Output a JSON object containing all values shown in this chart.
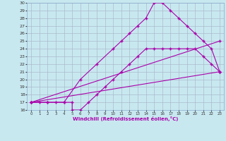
{
  "xlabel": "Windchill (Refroidissement éolien,°C)",
  "bg_color": "#c8e8f0",
  "line_color": "#aa00aa",
  "grid_color": "#aabbcc",
  "xlim": [
    -0.5,
    23.5
  ],
  "ylim": [
    16,
    30
  ],
  "xticks": [
    0,
    1,
    2,
    3,
    4,
    5,
    6,
    7,
    8,
    9,
    10,
    11,
    12,
    13,
    14,
    15,
    16,
    17,
    18,
    19,
    20,
    21,
    22,
    23
  ],
  "yticks": [
    16,
    17,
    18,
    19,
    20,
    21,
    22,
    23,
    24,
    25,
    26,
    27,
    28,
    29,
    30
  ],
  "curve1_x": [
    0,
    1,
    2,
    3,
    4,
    5,
    5,
    6,
    7,
    8,
    9,
    10,
    11,
    12,
    13,
    14,
    15,
    16,
    17,
    18,
    19,
    20,
    21,
    22,
    23
  ],
  "curve1_y": [
    17,
    17,
    17,
    17,
    17,
    17,
    16,
    16,
    17,
    18,
    19,
    20,
    21,
    22,
    23,
    24,
    24,
    24,
    24,
    24,
    24,
    24,
    23,
    22,
    21
  ],
  "curve2_x": [
    0,
    2,
    4,
    6,
    8,
    10,
    11,
    12,
    13,
    14,
    15,
    16,
    17,
    18,
    19,
    20,
    21,
    22,
    23
  ],
  "curve2_y": [
    17,
    17,
    17,
    20,
    22,
    24,
    25,
    26,
    27,
    28,
    30,
    30,
    29,
    28,
    27,
    26,
    25,
    24,
    21
  ],
  "curve3_x": [
    0,
    23
  ],
  "curve3_y": [
    17,
    21
  ],
  "curve4_x": [
    0,
    23
  ],
  "curve4_y": [
    17,
    25
  ]
}
